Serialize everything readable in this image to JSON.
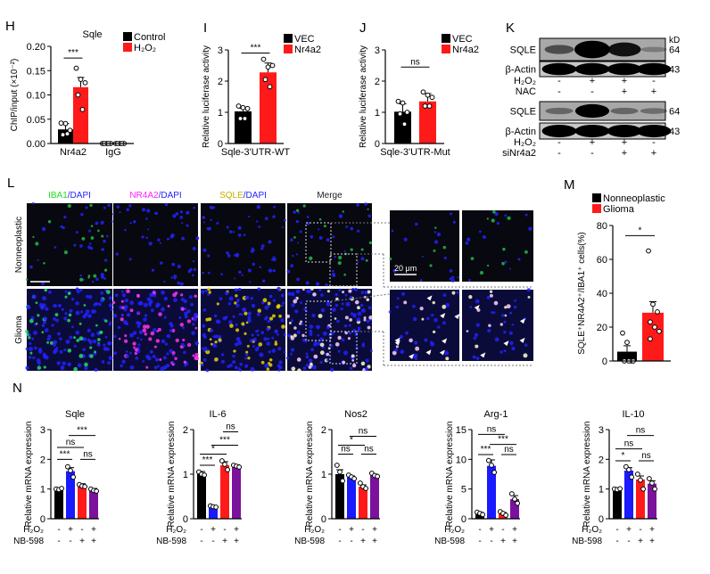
{
  "panel_labels": {
    "H": "H",
    "I": "I",
    "J": "J",
    "K": "K",
    "L": "L",
    "M": "M",
    "N": "N"
  },
  "colors": {
    "black": "#000000",
    "red": "#ff1a1a",
    "blue": "#1a1aff",
    "purple": "#7a129c"
  },
  "chart_data": [
    {
      "id": "H",
      "type": "bar",
      "title": "Sqle",
      "ylabel": "ChIP/input (×10⁻²)",
      "ylim": [
        0,
        0.2
      ],
      "yticks": [
        0,
        0.05,
        0.1,
        0.15,
        0.2
      ],
      "ytick_labels": [
        "0.00",
        "0.05",
        "0.10",
        "0.15",
        "0.20"
      ],
      "categories": [
        "Nr4a2",
        "IgG"
      ],
      "series": [
        {
          "name": "Control",
          "color": "#000000",
          "values": [
            0.029,
            0.0
          ],
          "errors": [
            0.012,
            0
          ],
          "points": [
            [
              0.042,
              0.041,
              0.027,
              0.018,
              0.02
            ],
            [
              0,
              0,
              0,
              0,
              0
            ]
          ]
        },
        {
          "name": "H₂O₂",
          "color": "#ff1a1a",
          "values": [
            0.116,
            0.0
          ],
          "errors": [
            0.02,
            0
          ],
          "points": [
            [
              0.155,
              0.132,
              0.125,
              0.1,
              0.07
            ],
            [
              0,
              0,
              0,
              0,
              0
            ]
          ]
        }
      ],
      "significance": [
        {
          "from": 0,
          "to": 1,
          "label": "***",
          "y": 0.176
        }
      ]
    },
    {
      "id": "I",
      "type": "bar",
      "title": "",
      "ylabel": "Relative luciferase activity",
      "ylim": [
        0,
        3
      ],
      "yticks": [
        0,
        1,
        2,
        3
      ],
      "ytick_labels": [
        "0",
        "1",
        "2",
        "3"
      ],
      "categories": [
        "Sqle-3'UTR-WT"
      ],
      "series": [
        {
          "name": "VEC",
          "color": "#000000",
          "values": [
            1.03
          ],
          "errors": [
            0.1
          ],
          "points": [
            [
              1.2,
              1.15,
              1.12,
              0.8,
              0.8
            ]
          ]
        },
        {
          "name": "Nr4a2",
          "color": "#ff1a1a",
          "values": [
            2.28
          ],
          "errors": [
            0.3
          ],
          "points": [
            [
              2.7,
              2.45,
              2.5,
              2.05,
              1.82
            ]
          ]
        }
      ],
      "significance": [
        {
          "from": 0,
          "to": 1,
          "label": "***",
          "y": 2.9
        }
      ]
    },
    {
      "id": "J",
      "type": "bar",
      "title": "",
      "ylabel": "Relative luciferase activity",
      "ylim": [
        0,
        3
      ],
      "yticks": [
        0,
        1,
        2,
        3
      ],
      "ytick_labels": [
        "0",
        "1",
        "2",
        "3"
      ],
      "categories": [
        "Sqle-3'UTR-Mut"
      ],
      "series": [
        {
          "name": "VEC",
          "color": "#000000",
          "values": [
            1.02
          ],
          "errors": [
            0.25
          ],
          "points": [
            [
              1.35,
              1.3,
              1.0,
              0.95,
              0.62
            ]
          ]
        },
        {
          "name": "Nr4a2",
          "color": "#ff1a1a",
          "values": [
            1.35
          ],
          "errors": [
            0.25
          ],
          "points": [
            [
              1.65,
              1.55,
              1.48,
              1.2,
              1.2
            ]
          ]
        }
      ],
      "significance": [
        {
          "from": 0,
          "to": 1,
          "label": "ns",
          "y": 2.45
        }
      ]
    },
    {
      "id": "M",
      "type": "bar",
      "title": "",
      "ylabel": "SQLE⁺NR4A2⁺/IBA1⁺ cells(%)",
      "ylim": [
        0,
        80
      ],
      "yticks": [
        0,
        20,
        40,
        60,
        80
      ],
      "ytick_labels": [
        "0",
        "20",
        "40",
        "60",
        "80"
      ],
      "categories": [
        ""
      ],
      "series": [
        {
          "name": "Nonneoplastic",
          "color": "#000000",
          "values": [
            5.5
          ],
          "errors": [
            3.5
          ],
          "points": [
            [
              16.5,
              11,
              0,
              0,
              0,
              0
            ]
          ]
        },
        {
          "name": "Glioma",
          "color": "#ff1a1a",
          "values": [
            28.5
          ],
          "errors": [
            6.5
          ],
          "points": [
            [
              65,
              33.5,
              29,
              23,
              20,
              17.5,
              13
            ]
          ]
        }
      ],
      "significance": [
        {
          "from": 0,
          "to": 1,
          "label": "*",
          "y": 74
        }
      ]
    },
    {
      "id": "N-Sqle",
      "type": "bar",
      "title": "Sqle",
      "ylabel": "Relative mRNA expression",
      "ylim": [
        0,
        3
      ],
      "yticks": [
        0,
        1,
        2,
        3
      ],
      "ytick_labels": [
        "0",
        "1",
        "2",
        "3"
      ],
      "treatments": {
        "H2O2_label": "H₂O₂",
        "NB598_label": "NB-598",
        "H2O2": [
          "-",
          "+",
          "-",
          "+"
        ],
        "NB598": [
          "-",
          "-",
          "+",
          "+"
        ]
      },
      "values": [
        1.0,
        1.6,
        1.12,
        0.97
      ],
      "errors": [
        0.03,
        0.12,
        0.06,
        0.05
      ],
      "colors": [
        "#000000",
        "#1a1aff",
        "#ff1a1a",
        "#7a129c"
      ],
      "points": [
        [
          1.0,
          0.98,
          1.02
        ],
        [
          1.75,
          1.62,
          1.4
        ],
        [
          1.15,
          1.1,
          1.08
        ],
        [
          1.0,
          0.95,
          0.93
        ]
      ],
      "significance": [
        {
          "from": 0,
          "to": 1,
          "label": "***",
          "y": 2.0
        },
        {
          "from": 0,
          "to": 2,
          "label": "ns",
          "y": 2.4
        },
        {
          "from": 1,
          "to": 3,
          "label": "***",
          "y": 2.8
        },
        {
          "from": 2,
          "to": 3,
          "label": "ns",
          "y": 2.0
        }
      ]
    },
    {
      "id": "N-IL6",
      "type": "bar",
      "title": "IL-6",
      "ylabel": "Relative mRNA expression",
      "ylim": [
        0,
        2
      ],
      "yticks": [
        0,
        1,
        2
      ],
      "ytick_labels": [
        "0",
        "1",
        "2"
      ],
      "treatments": {
        "H2O2_label": "H₂O₂",
        "NB598_label": "NB-598",
        "H2O2": [
          "-",
          "+",
          "-",
          "+"
        ],
        "NB598": [
          "-",
          "-",
          "+",
          "+"
        ]
      },
      "values": [
        1.03,
        0.27,
        1.2,
        1.18
      ],
      "errors": [
        0.03,
        0.02,
        0.08,
        0.03
      ],
      "colors": [
        "#000000",
        "#1a1aff",
        "#ff1a1a",
        "#7a129c"
      ],
      "points": [
        [
          1.05,
          1.0,
          0.98
        ],
        [
          0.29,
          0.27,
          0.26
        ],
        [
          1.3,
          1.22,
          1.1
        ],
        [
          1.2,
          1.18,
          1.16
        ]
      ],
      "significance": [
        {
          "from": 0,
          "to": 1,
          "label": "***",
          "y": 1.2
        },
        {
          "from": 0,
          "to": 2,
          "label": "*",
          "y": 1.45
        },
        {
          "from": 1,
          "to": 3,
          "label": "***",
          "y": 1.65
        },
        {
          "from": 2,
          "to": 3,
          "label": "ns",
          "y": 1.95
        }
      ]
    },
    {
      "id": "N-Nos2",
      "type": "bar",
      "title": "Nos2",
      "ylabel": "Relative mRNA expression",
      "ylim": [
        0,
        2
      ],
      "yticks": [
        0,
        1,
        2
      ],
      "ytick_labels": [
        "0",
        "1",
        "2"
      ],
      "treatments": {
        "H2O2_label": "H₂O₂",
        "NB598_label": "NB-598",
        "H2O2": [
          "-",
          "+",
          "-",
          "+"
        ],
        "NB598": [
          "-",
          "-",
          "+",
          "+"
        ]
      },
      "values": [
        1.0,
        0.93,
        0.72,
        0.97
      ],
      "errors": [
        0.1,
        0.03,
        0.04,
        0.03
      ],
      "colors": [
        "#000000",
        "#1a1aff",
        "#ff1a1a",
        "#7a129c"
      ],
      "points": [
        [
          1.2,
          1.05,
          0.85
        ],
        [
          0.98,
          0.94,
          0.9
        ],
        [
          0.8,
          0.72,
          0.68
        ],
        [
          1.02,
          0.97,
          0.95
        ]
      ],
      "significance": [
        {
          "from": 0,
          "to": 1,
          "label": "ns",
          "y": 1.45
        },
        {
          "from": 0,
          "to": 2,
          "label": "*",
          "y": 1.65
        },
        {
          "from": 1,
          "to": 3,
          "label": "ns",
          "y": 1.85
        },
        {
          "from": 2,
          "to": 3,
          "label": "ns",
          "y": 1.45
        }
      ]
    },
    {
      "id": "N-Arg1",
      "type": "bar",
      "title": "Arg-1",
      "ylabel": "Relative mRNA expression",
      "ylim": [
        0,
        15
      ],
      "yticks": [
        0,
        5,
        10,
        15
      ],
      "ytick_labels": [
        "0",
        "5",
        "10",
        "15"
      ],
      "treatments": {
        "H2O2_label": "H₂O₂",
        "NB598_label": "NB-598",
        "H2O2": [
          "-",
          "+",
          "-",
          "+"
        ],
        "NB598": [
          "-",
          "-",
          "+",
          "+"
        ]
      },
      "values": [
        0.9,
        8.9,
        0.85,
        3.3
      ],
      "errors": [
        0.2,
        1.0,
        0.2,
        0.6
      ],
      "colors": [
        "#000000",
        "#1a1aff",
        "#ff1a1a",
        "#7a129c"
      ],
      "points": [
        [
          1.1,
          0.9,
          0.7
        ],
        [
          9.8,
          9.0,
          7.8
        ],
        [
          1.2,
          0.9,
          0.6
        ],
        [
          4.2,
          3.3,
          2.6
        ]
      ],
      "significance": [
        {
          "from": 0,
          "to": 1,
          "label": "***",
          "y": 10.8
        },
        {
          "from": 0,
          "to": 2,
          "label": "ns",
          "y": 14.2
        },
        {
          "from": 1,
          "to": 3,
          "label": "***",
          "y": 12.5
        },
        {
          "from": 2,
          "to": 3,
          "label": "ns",
          "y": 10.8
        }
      ]
    },
    {
      "id": "N-IL10",
      "type": "bar",
      "title": "IL-10",
      "ylabel": "Relative mRNA expression",
      "ylim": [
        0,
        3
      ],
      "yticks": [
        0,
        1,
        2,
        3
      ],
      "ytick_labels": [
        "0",
        "1",
        "2",
        "3"
      ],
      "treatments": {
        "H2O2_label": "H₂O₂",
        "NB598_label": "NB-598",
        "H2O2": [
          "-",
          "+",
          "-",
          "+"
        ],
        "NB598": [
          "-",
          "-",
          "+",
          "+"
        ]
      },
      "values": [
        1.0,
        1.62,
        1.32,
        1.18
      ],
      "errors": [
        0.02,
        0.1,
        0.12,
        0.1
      ],
      "colors": [
        "#000000",
        "#1a1aff",
        "#ff1a1a",
        "#7a129c"
      ],
      "points": [
        [
          1.0,
          0.98,
          1.01
        ],
        [
          1.75,
          1.65,
          1.4
        ],
        [
          1.5,
          1.3,
          1.0
        ],
        [
          1.35,
          1.2,
          1.0
        ]
      ],
      "significance": [
        {
          "from": 0,
          "to": 1,
          "label": "*",
          "y": 1.95
        },
        {
          "from": 0,
          "to": 2,
          "label": "ns",
          "y": 2.35
        },
        {
          "from": 1,
          "to": 3,
          "label": "ns",
          "y": 2.8
        },
        {
          "from": 2,
          "to": 3,
          "label": "ns",
          "y": 1.95
        }
      ]
    }
  ],
  "western_blot": {
    "unit_label": "kD",
    "blots": [
      {
        "protein": "SQLE",
        "kd": "64",
        "band_intensity": [
          0.4,
          1.0,
          0.75,
          0.12
        ]
      },
      {
        "protein": "β-Actin",
        "kd": "43",
        "band_intensity": [
          0.9,
          0.9,
          0.9,
          0.9
        ]
      },
      {
        "protein": "SQLE",
        "kd": "64",
        "band_intensity": [
          0.25,
          0.85,
          0.25,
          0.2
        ]
      },
      {
        "protein": "β-Actin",
        "kd": "43",
        "band_intensity": [
          0.9,
          0.9,
          0.9,
          0.9
        ]
      }
    ],
    "conditions_top": [
      {
        "label": "H₂O₂",
        "values": [
          "-",
          "+",
          "+",
          "-"
        ]
      },
      {
        "label": "NAC",
        "values": [
          "-",
          "-",
          "+",
          "+"
        ]
      }
    ],
    "conditions_bottom": [
      {
        "label": "H₂O₂",
        "values": [
          "-",
          "+",
          "+",
          "-"
        ]
      },
      {
        "label": "siNr4a2",
        "values": [
          "-",
          "-",
          "+",
          "+"
        ]
      }
    ]
  },
  "microscopy": {
    "columns": [
      {
        "label": "IBA1",
        "suffix": "/DAPI",
        "color": "#22dd22"
      },
      {
        "label": "NR4A2",
        "suffix": "/DAPI",
        "color": "#ff22ff"
      },
      {
        "label": "SQLE",
        "suffix": "/DAPI",
        "color": "#c8b000"
      },
      {
        "label": "Merge",
        "suffix": "",
        "color": "#222222"
      }
    ],
    "rows": [
      "Nonneoplastic",
      "Glioma"
    ],
    "dapi_color": "#2222ff",
    "scale_bar_label": "20 μm"
  }
}
